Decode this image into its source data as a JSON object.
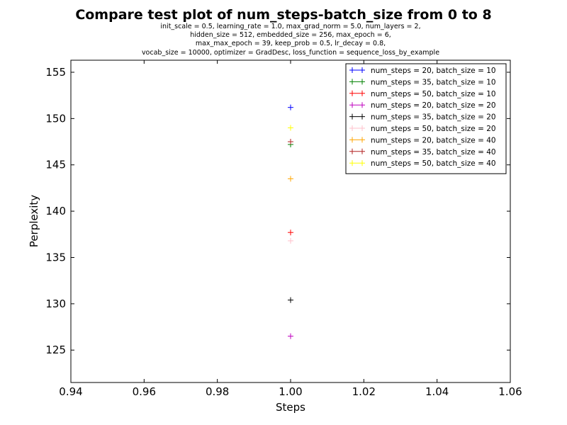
{
  "chart_data": {
    "type": "scatter",
    "title": "Compare test plot of num_steps-batch_size from 0 to 8",
    "subtitle_lines": [
      "init_scale = 0.5, learning_rate = 1.0, max_grad_norm = 5.0, num_layers = 2,",
      "hidden_size = 512, embedded_size = 256, max_epoch = 6,",
      "max_max_epoch = 39, keep_prob = 0.5, lr_decay = 0.8,",
      "vocab_size = 10000, optimizer = GradDesc, loss_function = sequence_loss_by_example"
    ],
    "xlabel": "Steps",
    "ylabel": "Perplexity",
    "xlim": [
      0.94,
      1.06
    ],
    "ylim": [
      121.5,
      156.3
    ],
    "xticks": [
      "0.94",
      "0.96",
      "0.98",
      "1.00",
      "1.02",
      "1.04",
      "1.06"
    ],
    "yticks": [
      "125",
      "130",
      "135",
      "140",
      "145",
      "150",
      "155"
    ],
    "legend_position": "top-right",
    "marker": "+",
    "series": [
      {
        "name": "num_steps = 20, batch_size = 10",
        "color": "#0000ff",
        "x": [
          1.0
        ],
        "y": [
          151.2
        ]
      },
      {
        "name": "num_steps = 35, batch_size = 10",
        "color": "#008000",
        "x": [
          1.0
        ],
        "y": [
          147.2
        ]
      },
      {
        "name": "num_steps = 50, batch_size = 10",
        "color": "#ff0000",
        "x": [
          1.0
        ],
        "y": [
          137.7
        ]
      },
      {
        "name": "num_steps = 20, batch_size = 20",
        "color": "#bf00bf",
        "x": [
          1.0
        ],
        "y": [
          126.5
        ]
      },
      {
        "name": "num_steps = 35, batch_size = 20",
        "color": "#000000",
        "x": [
          1.0
        ],
        "y": [
          130.4
        ]
      },
      {
        "name": "num_steps = 50, batch_size = 20",
        "color": "#ffc0cb",
        "x": [
          1.0
        ],
        "y": [
          136.8
        ]
      },
      {
        "name": "num_steps = 20, batch_size = 40",
        "color": "#ffa500",
        "x": [
          1.0
        ],
        "y": [
          143.5
        ]
      },
      {
        "name": "num_steps = 35, batch_size = 40",
        "color": "#b22222",
        "x": [
          1.0
        ],
        "y": [
          147.5
        ]
      },
      {
        "name": "num_steps = 50, batch_size = 40",
        "color": "#ffff00",
        "x": [
          1.0
        ],
        "y": [
          149.0
        ]
      }
    ]
  }
}
